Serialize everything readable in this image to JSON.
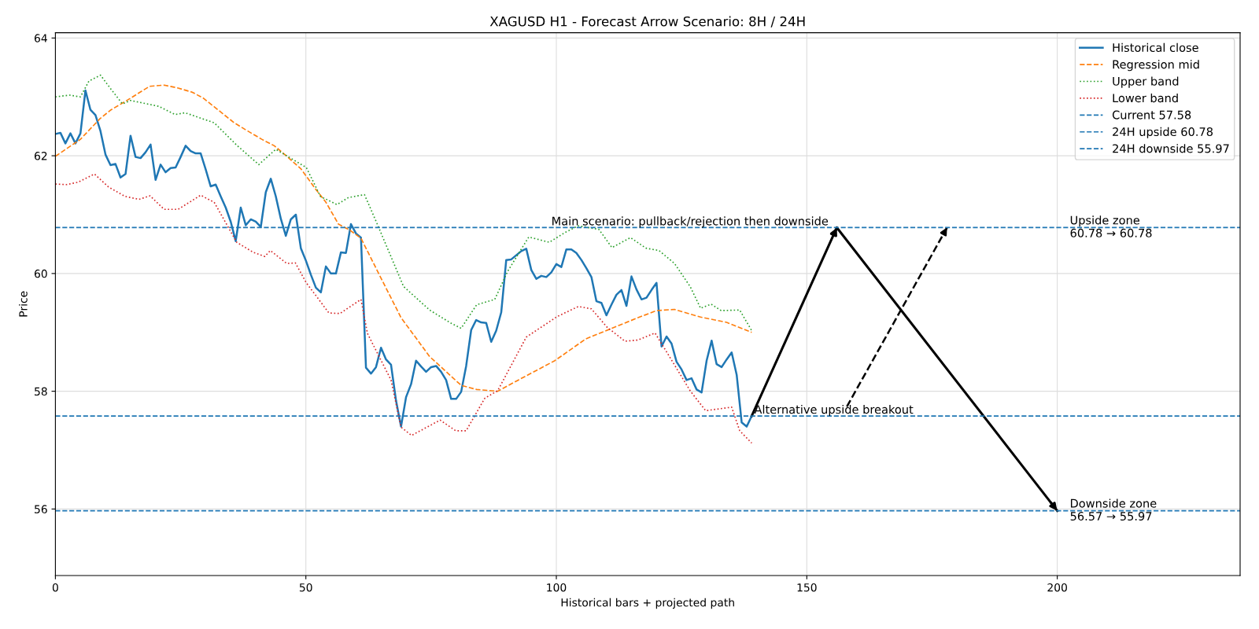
{
  "chart_data": {
    "type": "line",
    "title": "XAGUSD H1 - Forecast Arrow Scenario: 8H / 24H",
    "xlabel": "Historical bars + projected path",
    "ylabel": "Price",
    "xlim": [
      0,
      236.5
    ],
    "ylim": [
      54.87,
      64.09
    ],
    "xticks": [
      0,
      50,
      100,
      150,
      200
    ],
    "yticks": [
      56,
      58,
      60,
      62,
      64
    ],
    "grid": true,
    "legend": "top right",
    "marker": "none",
    "series": [
      {
        "name": "Historical close",
        "color": "#1f77b4",
        "line_style": "solid",
        "x": [
          0,
          1,
          2,
          3,
          4,
          5,
          6,
          7,
          8,
          9,
          10,
          11,
          12,
          13,
          14,
          15,
          16,
          17,
          18,
          19,
          20,
          21,
          22,
          23,
          24,
          25,
          26,
          27,
          28,
          29,
          30,
          31,
          32,
          33,
          34,
          35,
          36,
          37,
          38,
          39,
          40,
          41,
          42,
          43,
          44,
          45,
          46,
          47,
          48,
          49,
          50,
          51,
          52,
          53,
          54,
          55,
          56,
          57,
          58,
          59,
          60,
          61,
          62,
          63,
          64,
          65,
          66,
          67,
          68,
          69,
          70,
          71,
          72,
          73,
          74,
          75,
          76,
          77,
          78,
          79,
          80,
          81,
          82,
          83,
          84,
          85,
          86,
          87,
          88,
          89,
          90,
          91,
          92,
          93,
          94,
          95,
          96,
          97,
          98,
          99,
          100,
          101,
          102,
          103,
          104,
          105,
          106,
          107,
          108,
          109,
          110,
          111,
          112,
          113,
          114,
          115,
          116,
          117,
          118,
          119,
          120,
          121,
          122,
          123,
          124,
          125,
          126,
          127,
          128,
          129,
          130,
          131,
          132,
          133,
          134,
          135,
          136,
          137,
          138,
          139
        ],
        "values": [
          62.37,
          62.39,
          62.21,
          62.38,
          62.21,
          62.38,
          63.11,
          62.78,
          62.69,
          62.42,
          62.02,
          61.84,
          61.86,
          61.63,
          61.69,
          62.34,
          61.98,
          61.96,
          62.06,
          62.19,
          61.59,
          61.85,
          61.72,
          61.79,
          61.8,
          61.98,
          62.17,
          62.08,
          62.04,
          62.04,
          61.77,
          61.48,
          61.51,
          61.31,
          61.12,
          60.88,
          60.55,
          61.12,
          60.82,
          60.92,
          60.88,
          60.79,
          61.38,
          61.61,
          61.31,
          60.93,
          60.64,
          60.92,
          61.0,
          60.43,
          60.22,
          59.98,
          59.76,
          59.68,
          60.12,
          60.0,
          60.0,
          60.36,
          60.35,
          60.84,
          60.68,
          60.61,
          58.4,
          58.3,
          58.41,
          58.74,
          58.54,
          58.45,
          57.84,
          57.4,
          57.9,
          58.12,
          58.52,
          58.42,
          58.33,
          58.41,
          58.43,
          58.33,
          58.19,
          57.87,
          57.87,
          57.99,
          58.43,
          59.04,
          59.21,
          59.17,
          59.16,
          58.84,
          59.03,
          59.34,
          60.23,
          60.24,
          60.31,
          60.38,
          60.42,
          60.06,
          59.91,
          59.96,
          59.94,
          60.02,
          60.16,
          60.11,
          60.41,
          60.41,
          60.35,
          60.23,
          60.09,
          59.94,
          59.53,
          59.5,
          59.29,
          59.47,
          59.64,
          59.72,
          59.45,
          59.95,
          59.73,
          59.56,
          59.59,
          59.72,
          59.84,
          58.76,
          58.93,
          58.81,
          58.5,
          58.37,
          58.19,
          58.22,
          58.03,
          57.98,
          58.52,
          58.86,
          58.46,
          58.41,
          58.54,
          58.66,
          58.28,
          57.47,
          57.4,
          57.58
        ]
      },
      {
        "name": "Regression mid",
        "color": "#ff7f0e",
        "line_style": "dashed",
        "x": [
          0,
          5,
          8.9,
          11.1,
          13.9,
          18.8,
          21.7,
          24.5,
          27.3,
          29.5,
          32.9,
          35.7,
          38.4,
          41.2,
          43.7,
          46.2,
          49,
          51.8,
          54,
          56.5,
          58.7,
          61,
          64.3,
          69,
          74.7,
          81,
          84.1,
          88.3,
          92.4,
          99.7,
          105.9,
          111.1,
          116.3,
          120,
          123.6,
          128.8,
          134,
          139
        ],
        "values": [
          61.99,
          62.28,
          62.63,
          62.78,
          62.92,
          63.18,
          63.2,
          63.15,
          63.08,
          62.98,
          62.75,
          62.56,
          62.42,
          62.28,
          62.17,
          61.99,
          61.78,
          61.45,
          61.21,
          60.84,
          60.74,
          60.6,
          60.04,
          59.25,
          58.59,
          58.1,
          58.03,
          58.0,
          58.19,
          58.52,
          58.89,
          59.07,
          59.25,
          59.37,
          59.39,
          59.26,
          59.17,
          59.0
        ]
      },
      {
        "name": "Upper band",
        "color": "#2ca02c",
        "line_style": "dotted",
        "x": [
          0,
          2.8,
          5,
          6.7,
          9,
          11.1,
          13.4,
          15,
          20.6,
          23.9,
          25.9,
          31.7,
          36.2,
          40.6,
          44,
          50.1,
          52.9,
          56.2,
          58.5,
          61.7,
          64.3,
          69.5,
          74.7,
          78.9,
          81,
          84.1,
          87.7,
          90.3,
          94.5,
          98.6,
          101.8,
          104.4,
          108.5,
          111.1,
          114.8,
          117.9,
          120.5,
          123.6,
          126.7,
          128.8,
          130.9,
          132.9,
          136.6,
          139
        ],
        "values": [
          63.0,
          63.03,
          63.0,
          63.27,
          63.37,
          63.13,
          62.88,
          62.94,
          62.84,
          62.7,
          62.73,
          62.56,
          62.18,
          61.85,
          62.11,
          61.8,
          61.31,
          61.17,
          61.29,
          61.34,
          60.83,
          59.78,
          59.38,
          59.16,
          59.07,
          59.47,
          59.56,
          60.04,
          60.62,
          60.53,
          60.7,
          60.81,
          60.75,
          60.44,
          60.61,
          60.43,
          60.39,
          60.17,
          59.78,
          59.41,
          59.48,
          59.37,
          59.38,
          59.03
        ]
      },
      {
        "name": "Lower band",
        "color": "#d62728",
        "line_style": "dotted",
        "x": [
          0,
          2.2,
          4.5,
          7.8,
          10.6,
          13.9,
          16.7,
          18.9,
          21.7,
          24.5,
          29,
          31.7,
          36.2,
          39.5,
          41.8,
          42.9,
          46.2,
          47.9,
          50.1,
          54.6,
          56.8,
          61,
          62.3,
          67,
          69,
          71.1,
          76.8,
          79.9,
          82,
          85.7,
          88.3,
          94,
          100.2,
          104.4,
          107,
          110.1,
          113.7,
          116.3,
          119.7,
          121.5,
          126.7,
          129.8,
          135,
          136.6,
          139
        ],
        "values": [
          61.52,
          61.51,
          61.55,
          61.69,
          61.47,
          61.31,
          61.26,
          61.32,
          61.09,
          61.09,
          61.33,
          61.21,
          60.53,
          60.36,
          60.29,
          60.39,
          60.17,
          60.18,
          59.84,
          59.33,
          59.32,
          59.56,
          58.98,
          58.19,
          57.39,
          57.25,
          57.51,
          57.33,
          57.33,
          57.88,
          58.01,
          58.92,
          59.27,
          59.44,
          59.4,
          59.09,
          58.85,
          58.87,
          58.99,
          58.74,
          58.01,
          57.67,
          57.73,
          57.33,
          57.12
        ]
      },
      {
        "color": "#000000",
        "line_style": "solid",
        "x": [
          139,
          156,
          200
        ],
        "values": [
          57.58,
          60.78,
          55.97
        ]
      },
      {
        "color": "#000000",
        "line_style": "dashed",
        "x": [
          158,
          178
        ],
        "values": [
          57.74,
          60.78
        ]
      }
    ],
    "ref_lines": [
      {
        "axis": "y",
        "value": 57.58,
        "label": "Current 57.58",
        "color": "#1f77b4",
        "line_style": "dashed"
      },
      {
        "axis": "y",
        "value": 60.78,
        "label": "24H upside 60.78",
        "color": "#1f77b4",
        "line_style": "dashed"
      },
      {
        "axis": "y",
        "value": 55.97,
        "label": "24H downside 55.97",
        "color": "#1f77b4",
        "line_style": "dashed"
      }
    ],
    "annotations": [
      {
        "text": "Main scenario: pullback/rejection then downside",
        "x": 99,
        "y": 60.78
      },
      {
        "text": "Alternative upside breakout",
        "x": 139.5,
        "y": 57.58
      },
      {
        "text": "Upside zone\n60.78 → 60.78",
        "x": 202.5,
        "y": 60.78
      },
      {
        "text": "Downside zone\n56.57 → 55.97",
        "x": 202.5,
        "y": 55.97
      }
    ]
  }
}
